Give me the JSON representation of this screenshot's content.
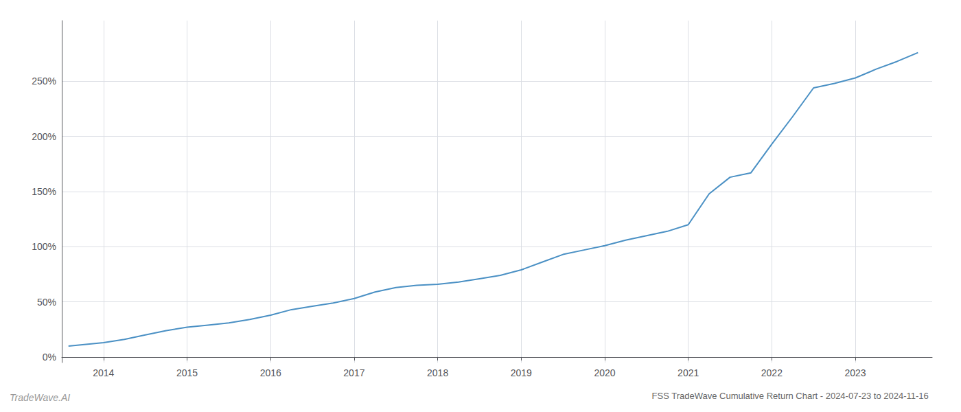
{
  "chart_data": {
    "type": "line",
    "title": "FSS TradeWave Cumulative Return Chart - 2024-07-23 to 2024-11-16",
    "annotations": [
      "TradeWave.AI"
    ],
    "x": [
      2013.58,
      2014.0,
      2014.25,
      2014.5,
      2014.75,
      2015.0,
      2015.25,
      2015.5,
      2015.75,
      2016.0,
      2016.25,
      2016.5,
      2016.75,
      2017.0,
      2017.25,
      2017.5,
      2017.75,
      2018.0,
      2018.25,
      2018.5,
      2018.75,
      2019.0,
      2019.25,
      2019.5,
      2019.75,
      2020.0,
      2020.25,
      2020.5,
      2020.75,
      2021.0,
      2021.25,
      2021.5,
      2021.75,
      2022.0,
      2022.25,
      2022.5,
      2022.75,
      2023.0,
      2023.25,
      2023.5,
      2023.75
    ],
    "values": [
      10,
      13,
      16,
      20,
      24,
      27,
      29,
      31,
      34,
      38,
      43,
      46,
      49,
      53,
      59,
      63,
      65,
      66,
      68,
      71,
      74,
      79,
      86,
      93,
      97,
      101,
      106,
      110,
      114,
      120,
      148,
      163,
      167,
      193,
      218,
      244,
      248,
      253,
      261,
      268,
      276
    ],
    "color": "#4a90c4",
    "xlim": [
      2013.5,
      2023.92
    ],
    "ylim": [
      -5,
      305
    ],
    "xticks": [
      2014,
      2015,
      2016,
      2017,
      2018,
      2019,
      2020,
      2021,
      2022,
      2023
    ],
    "yticks": [
      {
        "value": 0,
        "label": "0%"
      },
      {
        "value": 50,
        "label": "50%"
      },
      {
        "value": 100,
        "label": "100%"
      },
      {
        "value": 150,
        "label": "150%"
      },
      {
        "value": 200,
        "label": "200%"
      },
      {
        "value": 250,
        "label": "250%"
      }
    ],
    "grid": true
  }
}
